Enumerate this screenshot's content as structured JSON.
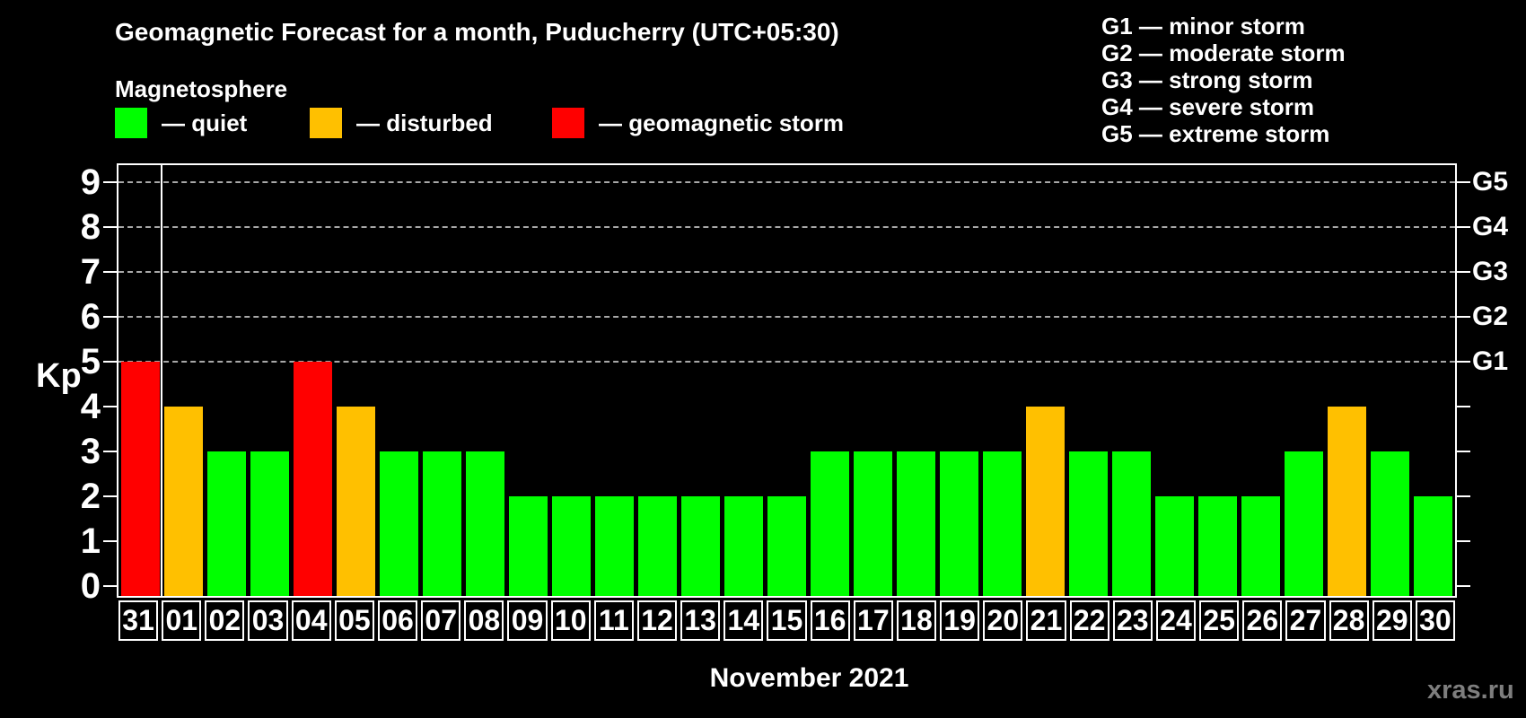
{
  "header": {
    "title": "Geomagnetic Forecast for a month, Puducherry (UTC+05:30)",
    "subtitle": "Magnetosphere"
  },
  "legend": {
    "items": [
      {
        "label": "— quiet",
        "status": "quiet",
        "color": "#00ff00"
      },
      {
        "label": "— disturbed",
        "status": "disturbed",
        "color": "#ffc000"
      },
      {
        "label": "— geomagnetic storm",
        "status": "storm",
        "color": "#ff0000"
      }
    ]
  },
  "g_legend": [
    "G1 — minor storm",
    "G2 — moderate storm",
    "G3 — strong storm",
    "G4 — severe storm",
    "G5 — extreme storm"
  ],
  "watermark": "xras.ru",
  "chart_data": {
    "type": "bar",
    "title": "Geomagnetic Forecast for a month, Puducherry (UTC+05:30)",
    "xlabel": "November 2021",
    "ylabel": "Kp",
    "ylim": [
      0,
      9.4
    ],
    "yticks": [
      0,
      1,
      2,
      3,
      4,
      5,
      6,
      7,
      8,
      9
    ],
    "gridlines_at": [
      5,
      6,
      7,
      8,
      9
    ],
    "grid_style": "dashed gray, only at Kp 5-9",
    "legend_position": "top-left",
    "categories": [
      "31",
      "01",
      "02",
      "03",
      "04",
      "05",
      "06",
      "07",
      "08",
      "09",
      "10",
      "11",
      "12",
      "13",
      "14",
      "15",
      "16",
      "17",
      "18",
      "19",
      "20",
      "21",
      "22",
      "23",
      "24",
      "25",
      "26",
      "27",
      "28",
      "29",
      "30"
    ],
    "values": [
      5,
      4,
      3,
      3,
      5,
      4,
      3,
      3,
      3,
      2,
      2,
      2,
      2,
      2,
      2,
      2,
      3,
      3,
      3,
      3,
      3,
      4,
      3,
      3,
      2,
      2,
      2,
      3,
      4,
      3,
      2
    ],
    "statuses": [
      "storm",
      "disturbed",
      "quiet",
      "quiet",
      "storm",
      "disturbed",
      "quiet",
      "quiet",
      "quiet",
      "quiet",
      "quiet",
      "quiet",
      "quiet",
      "quiet",
      "quiet",
      "quiet",
      "quiet",
      "quiet",
      "quiet",
      "quiet",
      "quiet",
      "disturbed",
      "quiet",
      "quiet",
      "quiet",
      "quiet",
      "quiet",
      "quiet",
      "disturbed",
      "quiet",
      "quiet"
    ],
    "status_colors": {
      "quiet": "#00ff00",
      "disturbed": "#ffc000",
      "storm": "#ff0000"
    },
    "separator_after_category": "31",
    "right_axis": [
      {
        "label": "G1",
        "kp": 5
      },
      {
        "label": "G2",
        "kp": 6
      },
      {
        "label": "G3",
        "kp": 7
      },
      {
        "label": "G4",
        "kp": 8
      },
      {
        "label": "G5",
        "kp": 9
      }
    ]
  }
}
